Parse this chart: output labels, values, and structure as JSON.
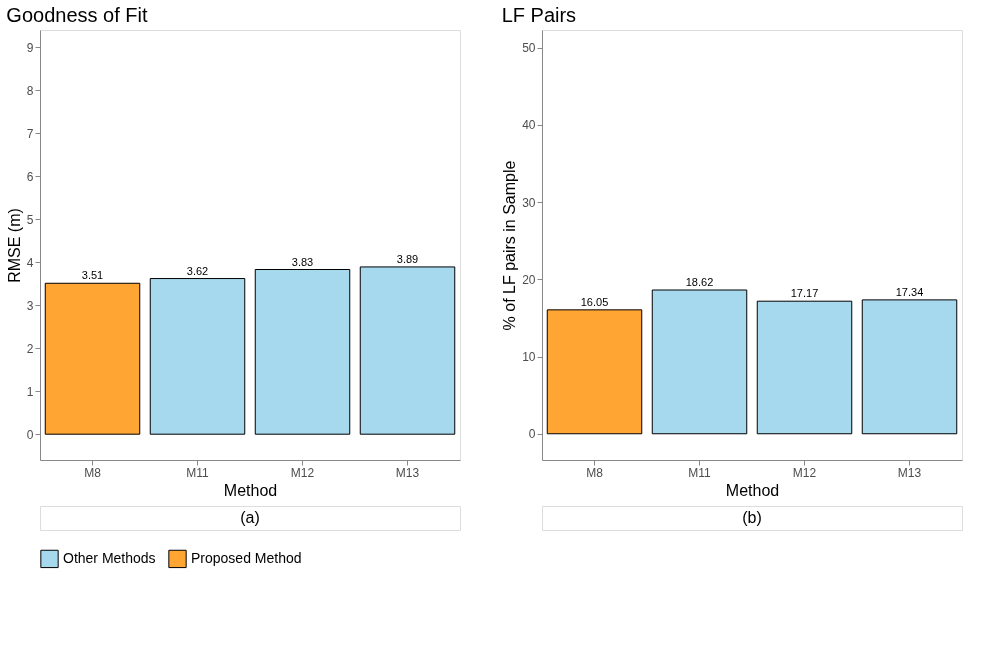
{
  "chart_data": [
    {
      "type": "bar",
      "title": "Goodness of Fit",
      "xlabel": "Method",
      "ylabel": "RMSE (m)",
      "categories": [
        "M8",
        "M11",
        "M12",
        "M13"
      ],
      "series": [
        {
          "name": "Other Methods",
          "color": "#a6d9ee",
          "values": [
            null,
            3.62,
            3.83,
            3.89
          ]
        },
        {
          "name": "Proposed Method",
          "color": "#ffa534",
          "values": [
            3.51,
            null,
            null,
            null
          ]
        }
      ],
      "ylim": [
        -0.6,
        9.4
      ],
      "yticks": [
        0,
        1,
        2,
        3,
        4,
        5,
        6,
        7,
        8,
        9
      ],
      "grid": false,
      "data_labels": true,
      "legend": "bottom",
      "annotations": [
        "(a)"
      ]
    },
    {
      "type": "bar",
      "title": "LF Pairs",
      "xlabel": "Method",
      "ylabel": "% of LF pairs in Sample",
      "categories": [
        "M8",
        "M11",
        "M12",
        "M13"
      ],
      "series": [
        {
          "name": "Other Methods",
          "color": "#a6d9ee",
          "values": [
            null,
            18.62,
            17.17,
            17.34
          ]
        },
        {
          "name": "Proposed Method",
          "color": "#ffa534",
          "values": [
            16.05,
            null,
            null,
            null
          ]
        }
      ],
      "ylim": [
        -3.4,
        52.3
      ],
      "yticks": [
        0,
        10,
        20,
        30,
        40,
        50
      ],
      "grid": false,
      "data_labels": true,
      "legend": "bottom",
      "annotations": [
        "(b)"
      ]
    }
  ]
}
